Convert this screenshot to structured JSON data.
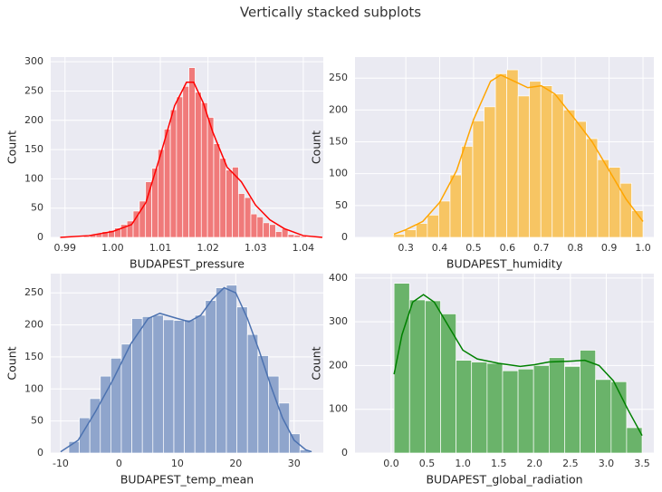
{
  "title": "Vertically stacked subplots",
  "chart_data": [
    {
      "type": "histogram",
      "xlabel": "BUDAPEST_pressure",
      "ylabel": "Count",
      "bins": [
        0.99,
        0.9913,
        0.9926,
        0.9939,
        0.9952,
        0.9965,
        0.9978,
        0.9991,
        1.0004,
        1.0017,
        1.003,
        1.0043,
        1.0056,
        1.0069,
        1.0082,
        1.0095,
        1.0108,
        1.0121,
        1.0134,
        1.0147,
        1.016,
        1.0173,
        1.0186,
        1.0199,
        1.0212,
        1.0225,
        1.0238,
        1.0251,
        1.0264,
        1.0277,
        1.029,
        1.0303,
        1.0316,
        1.0329,
        1.0342,
        1.0355,
        1.0368,
        1.0381,
        1.0394,
        1.0407,
        1.042
      ],
      "values": [
        1,
        0,
        1,
        2,
        5,
        6,
        10,
        12,
        16,
        22,
        28,
        45,
        62,
        95,
        118,
        150,
        185,
        218,
        240,
        258,
        290,
        248,
        230,
        205,
        160,
        135,
        115,
        120,
        75,
        68,
        40,
        35,
        25,
        22,
        10,
        15,
        5,
        4,
        2,
        1
      ],
      "color": "#f07a7a",
      "kde": {
        "x": [
          0.989,
          0.995,
          1.0,
          1.004,
          1.007,
          1.01,
          1.013,
          1.0155,
          1.017,
          1.019,
          1.021,
          1.024,
          1.027,
          1.03,
          1.033,
          1.036,
          1.04,
          1.044
        ],
        "values": [
          0,
          3,
          10,
          22,
          60,
          140,
          225,
          265,
          265,
          230,
          180,
          120,
          95,
          55,
          30,
          15,
          3,
          0
        ],
        "color": "#ff0000"
      },
      "xlim": [
        0.987,
        1.0442
      ],
      "ylim": [
        0,
        308
      ],
      "xticks": [
        0.99,
        {
          "value": 1,
          "label": "1.00"
        },
        1.01,
        1.02,
        1.03,
        1.04
      ],
      "yticks": [
        0,
        50,
        100,
        150,
        200,
        250,
        300
      ],
      "grid": true
    },
    {
      "type": "histogram",
      "xlabel": "BUDAPEST_humidity",
      "ylabel": "Count",
      "bins": [
        0.263,
        0.2965,
        0.33,
        0.3635,
        0.397,
        0.4305,
        0.464,
        0.4975,
        0.531,
        0.5645,
        0.598,
        0.6315,
        0.665,
        0.6985,
        0.732,
        0.7655,
        0.799,
        0.8325,
        0.866,
        0.8995,
        0.933,
        0.9665,
        1.0
      ],
      "values": [
        5,
        12,
        22,
        35,
        57,
        98,
        143,
        183,
        205,
        257,
        263,
        222,
        245,
        238,
        225,
        200,
        182,
        155,
        122,
        110,
        85,
        42
      ],
      "color": "#f7c563",
      "kde": {
        "x": [
          0.265,
          0.3,
          0.35,
          0.4,
          0.45,
          0.5,
          0.55,
          0.58,
          0.62,
          0.66,
          0.7,
          0.74,
          0.8,
          0.85,
          0.9,
          0.95,
          1.0
        ],
        "values": [
          5,
          12,
          25,
          55,
          105,
          185,
          245,
          255,
          245,
          235,
          238,
          225,
          185,
          150,
          105,
          60,
          25
        ],
        "color": "#ffa500"
      },
      "xlim": [
        0.15,
        1.032
      ],
      "ylim": [
        0,
        283
      ],
      "xticks": [
        0.3,
        0.4,
        0.5,
        0.6,
        0.7,
        0.8,
        0.9,
        {
          "value": 1,
          "label": "1.0"
        }
      ],
      "yticks": [
        0,
        50,
        100,
        150,
        200,
        250
      ],
      "grid": true
    },
    {
      "type": "histogram",
      "xlabel": "BUDAPEST_temp_mean",
      "ylabel": "Count",
      "bins": [
        -8.6,
        -6.8,
        -5,
        -3.2,
        -1.4,
        0.4,
        2.2,
        4,
        5.8,
        7.6,
        9.4,
        11.2,
        13,
        14.8,
        16.6,
        18.4,
        20.2,
        22,
        23.8,
        25.6,
        27.4,
        29.2,
        31,
        32.8
      ],
      "values": [
        18,
        55,
        85,
        120,
        148,
        170,
        210,
        213,
        215,
        208,
        207,
        208,
        215,
        238,
        258,
        262,
        228,
        185,
        152,
        120,
        78,
        30,
        5
      ],
      "color": "#8fa5cc",
      "kde": {
        "x": [
          -10,
          -7,
          -4,
          -1,
          2,
          5,
          7,
          10,
          12,
          14,
          16,
          18,
          20,
          22,
          24,
          26,
          28,
          30,
          32,
          33
        ],
        "values": [
          2,
          20,
          65,
          115,
          170,
          210,
          218,
          210,
          205,
          215,
          240,
          258,
          250,
          210,
          160,
          105,
          55,
          20,
          5,
          2
        ],
        "color": "#4c72b0"
      },
      "xlim": [
        -11.7,
        35
      ],
      "ylim": [
        0,
        280
      ],
      "xticks": [
        -10,
        0,
        10,
        20,
        30
      ],
      "yticks": [
        0,
        50,
        100,
        150,
        200,
        250
      ],
      "grid": true
    },
    {
      "type": "histogram",
      "xlabel": "BUDAPEST_global_radiation",
      "ylabel": "Count",
      "bins": [
        0.04,
        0.256,
        0.473,
        0.689,
        0.905,
        1.121,
        1.338,
        1.554,
        1.77,
        1.986,
        2.203,
        2.419,
        2.635,
        2.851,
        3.068,
        3.284,
        3.5
      ],
      "values": [
        388,
        350,
        348,
        318,
        212,
        208,
        205,
        188,
        192,
        200,
        218,
        198,
        235,
        168,
        163,
        58
      ],
      "color": "#6ab36a",
      "kde": {
        "x": [
          0.04,
          0.15,
          0.3,
          0.45,
          0.6,
          0.8,
          1.0,
          1.2,
          1.5,
          1.8,
          2.0,
          2.2,
          2.5,
          2.7,
          2.9,
          3.1,
          3.3,
          3.5
        ],
        "values": [
          180,
          270,
          345,
          362,
          345,
          290,
          235,
          215,
          205,
          198,
          202,
          208,
          210,
          212,
          200,
          165,
          100,
          40
        ],
        "color": "#008000"
      },
      "xlim": [
        -0.505,
        3.664
      ],
      "ylim": [
        0,
        410
      ],
      "xticks": [
        {
          "value": 0,
          "label": "0.0"
        },
        0.5,
        {
          "value": 1,
          "label": "1.0"
        },
        1.5,
        {
          "value": 2,
          "label": "2.0"
        },
        2.5,
        {
          "value": 3,
          "label": "3.0"
        },
        3.5
      ],
      "yticks": [
        0,
        100,
        200,
        300,
        400
      ],
      "grid": true
    }
  ]
}
